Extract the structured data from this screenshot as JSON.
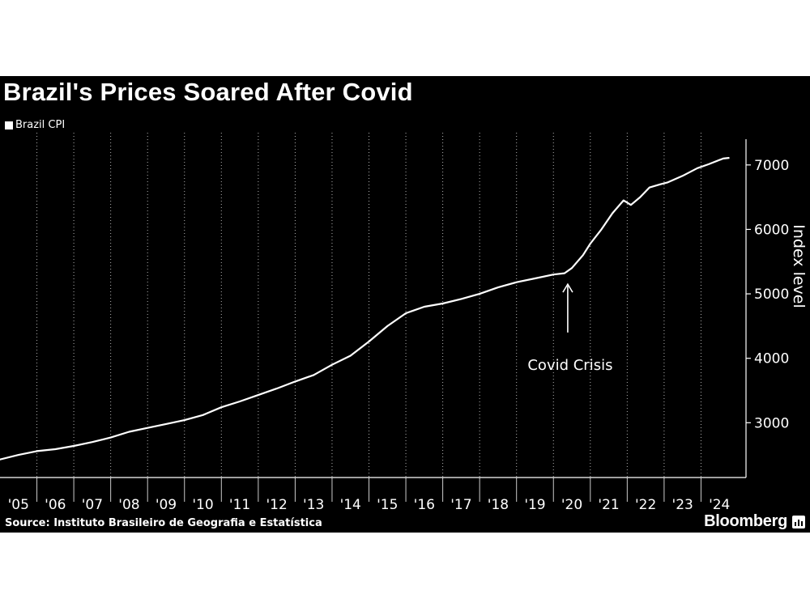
{
  "title": "Brazil's Prices Soared After Covid",
  "source": "Source: Instituto Brasileiro de Geografia e Estatística",
  "brand": "Bloomberg",
  "colors": {
    "background": "#000000",
    "line": "#ffffff",
    "grid": "#ffffff"
  },
  "chart_data": {
    "type": "line",
    "title": "Brazil's Prices Soared After Covid",
    "ylabel": "Index level",
    "xlabel": "",
    "ylim": [
      2150,
      7500
    ],
    "y_ticks": [
      3000,
      4000,
      5000,
      6000,
      7000
    ],
    "x_ticks": [
      "'05",
      "'06",
      "'07",
      "'08",
      "'09",
      "'10",
      "'11",
      "'12",
      "'13",
      "'14",
      "'15",
      "'16",
      "'17",
      "'18",
      "'19",
      "'20",
      "'21",
      "'22",
      "'23",
      "'24"
    ],
    "grid": "vertical dotted",
    "legend": {
      "position": "top-left",
      "entries": [
        "Brazil CPI"
      ]
    },
    "annotation": {
      "text": "Covid Crisis",
      "x": 2020.3,
      "arrow_from_y": 4400,
      "arrow_to_y": 5150
    },
    "series": [
      {
        "name": "Brazil CPI",
        "x": [
          2005.0,
          2005.5,
          2006.0,
          2006.5,
          2007.0,
          2007.5,
          2008.0,
          2008.5,
          2009.0,
          2009.5,
          2010.0,
          2010.5,
          2011.0,
          2011.5,
          2012.0,
          2012.5,
          2013.0,
          2013.5,
          2014.0,
          2014.5,
          2015.0,
          2015.5,
          2016.0,
          2016.5,
          2017.0,
          2017.5,
          2018.0,
          2018.5,
          2019.0,
          2019.5,
          2020.0,
          2020.3,
          2020.5,
          2020.8,
          2021.0,
          2021.3,
          2021.6,
          2021.9,
          2022.1,
          2022.35,
          2022.6,
          2022.9,
          2023.1,
          2023.5,
          2023.9,
          2024.2,
          2024.6,
          2024.75
        ],
        "values": [
          2430,
          2500,
          2560,
          2590,
          2640,
          2700,
          2770,
          2860,
          2920,
          2980,
          3040,
          3120,
          3240,
          3330,
          3430,
          3530,
          3640,
          3740,
          3900,
          4040,
          4260,
          4500,
          4700,
          4800,
          4850,
          4920,
          5000,
          5100,
          5180,
          5240,
          5300,
          5320,
          5400,
          5600,
          5780,
          6000,
          6250,
          6450,
          6380,
          6500,
          6650,
          6700,
          6730,
          6830,
          6950,
          7010,
          7100,
          7110
        ]
      }
    ]
  }
}
